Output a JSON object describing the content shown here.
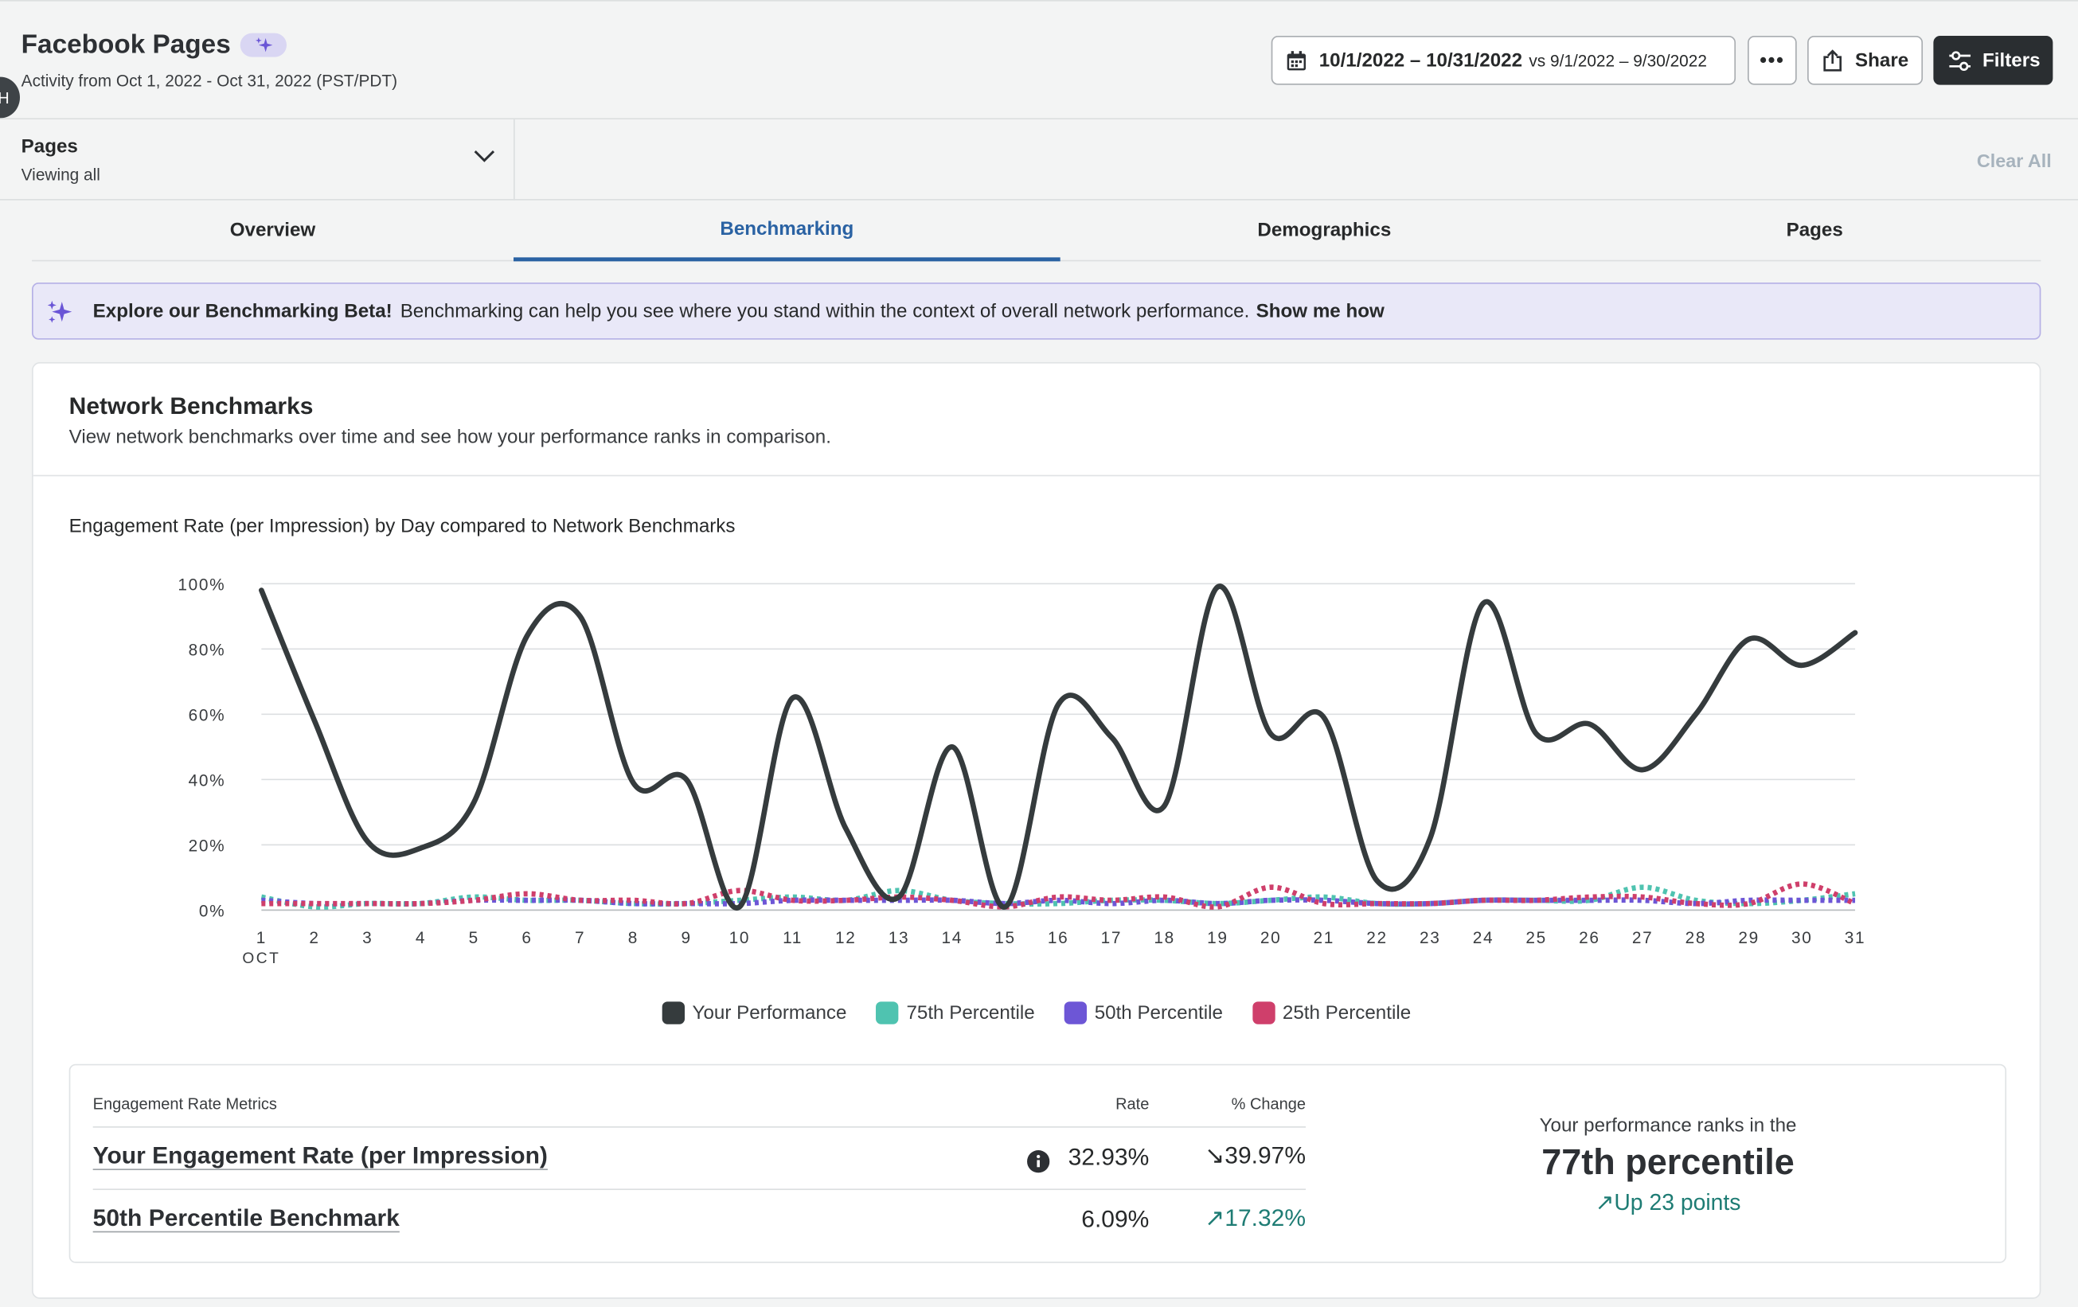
{
  "header": {
    "title": "Facebook Pages",
    "subtitle": "Activity from Oct 1, 2022 - Oct 31, 2022 (PST/PDT)",
    "side_tab": "H",
    "date_range": "10/1/2022 – 10/31/2022",
    "compare_range": "vs 9/1/2022 – 9/30/2022",
    "more_label": "•••",
    "share_label": "Share",
    "filters_label": "Filters"
  },
  "filters": {
    "pages_label": "Pages",
    "pages_value": "Viewing all",
    "clear_all": "Clear All"
  },
  "tabs": [
    {
      "label": "Overview",
      "active": false
    },
    {
      "label": "Benchmarking",
      "active": true
    },
    {
      "label": "Demographics",
      "active": false
    },
    {
      "label": "Pages",
      "active": false
    }
  ],
  "banner": {
    "bold": "Explore our Benchmarking Beta!",
    "text": "Benchmarking can help you see where you stand within the context of overall network performance.",
    "link": "Show me how"
  },
  "card": {
    "title": "Network Benchmarks",
    "description": "View network benchmarks over time and see how your performance ranks in comparison.",
    "chart_title": "Engagement Rate (per Impression) by Day compared to Network Benchmarks"
  },
  "colors": {
    "your_performance": "#353b3d",
    "p75": "#4fc3b0",
    "p50": "#6d56d6",
    "p25": "#cf3f6b",
    "active_tab": "#2a62a3",
    "positive": "#1e7c74"
  },
  "chart_data": {
    "type": "line",
    "x": [
      1,
      2,
      3,
      4,
      5,
      6,
      7,
      8,
      9,
      10,
      11,
      12,
      13,
      14,
      15,
      16,
      17,
      18,
      19,
      20,
      21,
      22,
      23,
      24,
      25,
      26,
      27,
      28,
      29,
      30,
      31
    ],
    "x_sublabel": "OCT",
    "y_ticks": [
      "100%",
      "80%",
      "60%",
      "40%",
      "20%",
      "0%"
    ],
    "ylim": [
      0,
      100
    ],
    "xlabel": "",
    "ylabel": "",
    "grid": true,
    "legend_position": "bottom",
    "series": [
      {
        "name": "Your Performance",
        "style": "solid",
        "values": [
          98,
          58,
          21,
          19,
          33,
          84,
          90,
          39,
          40,
          1,
          65,
          25,
          4,
          50,
          1,
          63,
          53,
          32,
          99,
          54,
          59,
          9,
          22,
          94,
          54,
          57,
          43,
          60,
          83,
          75,
          85
        ]
      },
      {
        "name": "75th Percentile",
        "style": "dotted",
        "values": [
          4,
          1,
          2,
          2,
          4,
          3,
          3,
          2,
          2,
          3,
          4,
          3,
          6,
          3,
          2,
          2,
          3,
          3,
          2,
          3,
          4,
          2,
          2,
          3,
          3,
          3,
          7,
          3,
          2,
          3,
          5
        ]
      },
      {
        "name": "50th Percentile",
        "style": "dotted",
        "values": [
          3,
          2,
          2,
          2,
          3,
          3,
          3,
          2,
          2,
          2,
          3,
          3,
          3,
          3,
          2,
          3,
          2,
          3,
          2,
          3,
          3,
          2,
          2,
          3,
          3,
          3,
          3,
          2,
          3,
          3,
          3
        ]
      },
      {
        "name": "25th Percentile",
        "style": "dotted",
        "values": [
          2,
          2,
          2,
          2,
          3,
          5,
          3,
          3,
          2,
          6,
          3,
          3,
          4,
          3,
          1,
          4,
          3,
          4,
          1,
          7,
          2,
          2,
          2,
          3,
          3,
          4,
          4,
          2,
          2,
          8,
          2
        ]
      }
    ]
  },
  "metrics": {
    "col_label": "Engagement Rate Metrics",
    "col_rate": "Rate",
    "col_change": "% Change",
    "rows": [
      {
        "label": "Your Engagement Rate (per Impression)",
        "rate": "32.93%",
        "change": "↘39.97%",
        "direction": "down"
      },
      {
        "label": "50th Percentile Benchmark",
        "rate": "6.09%",
        "change": "↗17.32%",
        "direction": "up"
      }
    ],
    "rank_intro": "Your performance ranks in the",
    "rank_value": "77th percentile",
    "rank_change": "↗Up 23 points"
  }
}
